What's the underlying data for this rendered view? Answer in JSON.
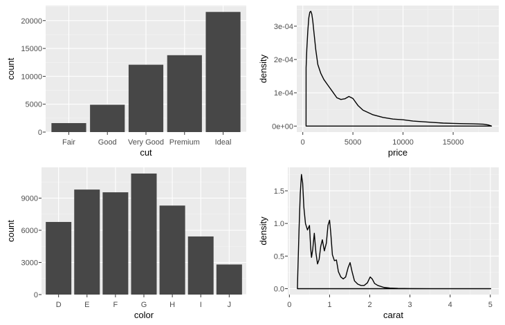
{
  "chart_data": [
    {
      "type": "bar",
      "xlabel": "cut",
      "ylabel": "count",
      "categories": [
        "Fair",
        "Good",
        "Very Good",
        "Premium",
        "Ideal"
      ],
      "values": [
        1610,
        4906,
        12082,
        13791,
        21551
      ],
      "ylim": [
        0,
        22700
      ],
      "yticks": [
        0,
        5000,
        10000,
        15000,
        20000
      ],
      "ytick_labels": [
        "0",
        "5000",
        "10000",
        "15000",
        "20000"
      ],
      "grid": true,
      "color": "#474747",
      "panel_background": "#ebebeb"
    },
    {
      "type": "line",
      "subtype": "density",
      "xlabel": "price",
      "ylabel": "density",
      "xlim": [
        -600,
        19550
      ],
      "ylim": [
        -1.8e-05,
        0.000362
      ],
      "xticks": [
        0,
        5000,
        10000,
        15000
      ],
      "xtick_labels": [
        "0",
        "5000",
        "10000",
        "15000"
      ],
      "yticks": [
        0,
        0.0001,
        0.0002,
        0.0003
      ],
      "ytick_labels": [
        "0e+00",
        "1e-04",
        "2e-04",
        "3e-04"
      ],
      "x": [
        326,
        330,
        400,
        500,
        600,
        700,
        800,
        900,
        1000,
        1100,
        1300,
        1500,
        1800,
        2100,
        2500,
        3000,
        3400,
        3800,
        4200,
        4600,
        5000,
        5500,
        6000,
        7000,
        8000,
        9000,
        10000,
        11000,
        12000,
        13000,
        14000,
        15000,
        16000,
        17000,
        18000,
        18500,
        18823
      ],
      "y": [
        0,
        0.000175,
        0.00023,
        0.000285,
        0.000325,
        0.000342,
        0.000345,
        0.000336,
        0.000315,
        0.000285,
        0.000228,
        0.000185,
        0.000158,
        0.00014,
        0.000123,
        0.000102,
        8.5e-05,
        8e-05,
        8.2e-05,
        8.9e-05,
        8.3e-05,
        6.2e-05,
        4.8e-05,
        3.4e-05,
        2.6e-05,
        2.1e-05,
        1.9e-05,
        1.5e-05,
        1.3e-05,
        1.1e-05,
        9e-06,
        8e-06,
        7.2e-06,
        6.8e-06,
        5.8e-06,
        3.5e-06,
        0
      ],
      "grid": true,
      "panel_background": "#ebebeb"
    },
    {
      "type": "bar",
      "xlabel": "color",
      "ylabel": "count",
      "categories": [
        "D",
        "E",
        "F",
        "G",
        "H",
        "I",
        "J"
      ],
      "values": [
        6775,
        9797,
        9542,
        11292,
        8304,
        5422,
        2808
      ],
      "ylim": [
        0,
        11870
      ],
      "yticks": [
        0,
        3000,
        6000,
        9000
      ],
      "ytick_labels": [
        "0",
        "3000",
        "6000",
        "9000"
      ],
      "grid": true,
      "color": "#474747",
      "panel_background": "#ebebeb"
    },
    {
      "type": "line",
      "subtype": "density",
      "xlabel": "carat",
      "ylabel": "density",
      "xlim": [
        -0.04,
        5.21
      ],
      "ylim": [
        -0.09,
        1.86
      ],
      "xticks": [
        0,
        1,
        2,
        3,
        4,
        5
      ],
      "xtick_labels": [
        "0",
        "1",
        "2",
        "3",
        "4",
        "5"
      ],
      "yticks": [
        0,
        0.5,
        1.0,
        1.5
      ],
      "ytick_labels": [
        "0.0",
        "0.5",
        "1.0",
        "1.5"
      ],
      "x": [
        0.2,
        0.21,
        0.24,
        0.27,
        0.3,
        0.33,
        0.36,
        0.4,
        0.45,
        0.5,
        0.53,
        0.55,
        0.58,
        0.62,
        0.66,
        0.7,
        0.74,
        0.78,
        0.82,
        0.87,
        0.92,
        0.96,
        1.0,
        1.03,
        1.07,
        1.12,
        1.17,
        1.22,
        1.28,
        1.34,
        1.4,
        1.46,
        1.51,
        1.56,
        1.62,
        1.7,
        1.78,
        1.86,
        1.94,
        2.01,
        2.06,
        2.12,
        2.2,
        2.35,
        2.5,
        2.7,
        3.0,
        3.5,
        4.0,
        4.5,
        5.01
      ],
      "y": [
        0,
        0.25,
        0.9,
        1.45,
        1.75,
        1.62,
        1.25,
        1.0,
        0.9,
        0.97,
        0.62,
        0.48,
        0.6,
        0.85,
        0.55,
        0.38,
        0.45,
        0.65,
        0.75,
        0.58,
        0.7,
        0.97,
        1.05,
        0.85,
        0.52,
        0.43,
        0.44,
        0.26,
        0.18,
        0.15,
        0.18,
        0.32,
        0.4,
        0.26,
        0.12,
        0.07,
        0.05,
        0.05,
        0.09,
        0.18,
        0.15,
        0.08,
        0.05,
        0.02,
        0.01,
        0.004,
        0.002,
        0.001,
        0.001,
        0.001,
        0
      ]
    }
  ]
}
